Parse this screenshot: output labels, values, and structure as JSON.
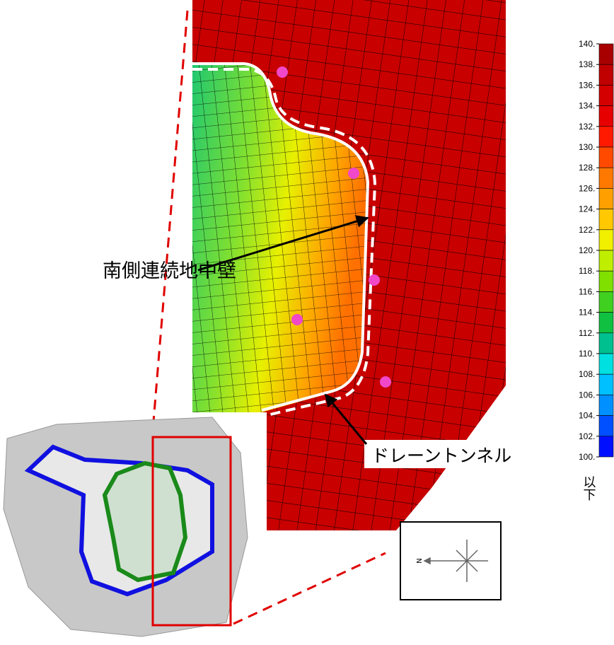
{
  "labels": {
    "wall": "南側連続地中壁",
    "tunnel": "ドレーントンネル",
    "below": "以下"
  },
  "compass": {
    "label": "N"
  },
  "colorbar": {
    "labels": [
      "140.",
      "138.",
      "136.",
      "134.",
      "132.",
      "130.",
      "128.",
      "126.",
      "124.",
      "122.",
      "120.",
      "118.",
      "116.",
      "114.",
      "112.",
      "110.",
      "108.",
      "106.",
      "104.",
      "102.",
      "100."
    ],
    "colors": [
      "#a80000",
      "#c00000",
      "#d40000",
      "#e60000",
      "#ff1a00",
      "#ff4a00",
      "#ff7800",
      "#ffa000",
      "#ffc800",
      "#f0f000",
      "#c0ee00",
      "#80e000",
      "#40d020",
      "#10c040",
      "#00c090",
      "#00e0e0",
      "#00c0ff",
      "#0090ff",
      "#0050ff",
      "#0010ff"
    ]
  }
}
